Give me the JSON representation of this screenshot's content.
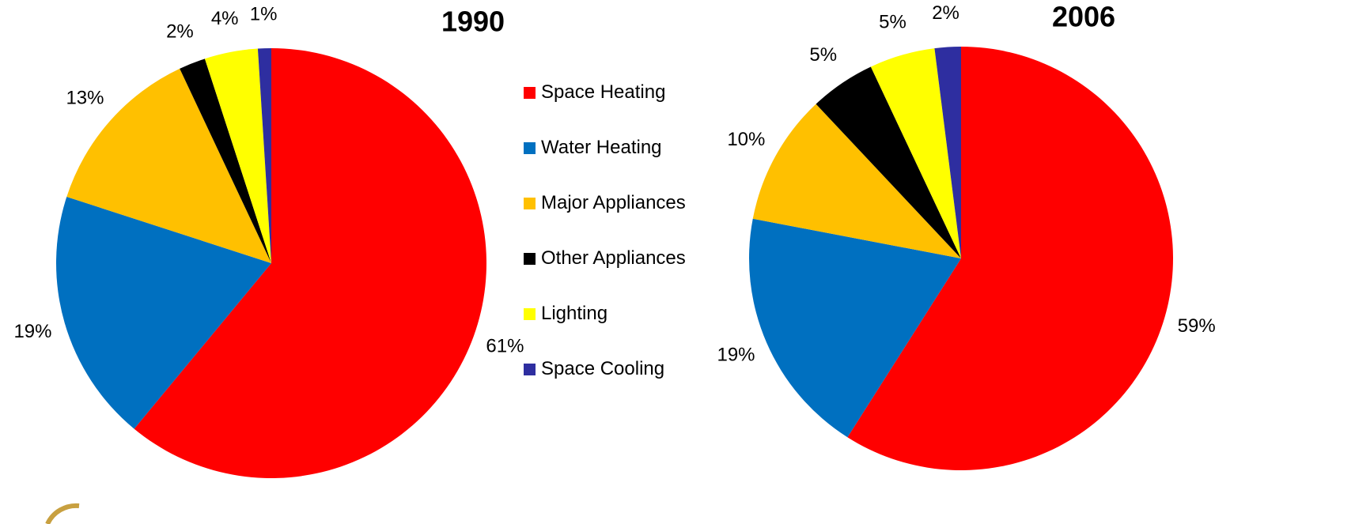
{
  "chart_data": [
    {
      "type": "pie",
      "title": "1990",
      "categories": [
        "Space Heating",
        "Water Heating",
        "Major Appliances",
        "Other Appliances",
        "Lighting",
        "Space Cooling"
      ],
      "colors": [
        "#ff0000",
        "#0070c0",
        "#ffc000",
        "#000000",
        "#ffff00",
        "#2e2ea0"
      ],
      "values": [
        61,
        19,
        13,
        2,
        4,
        1
      ],
      "value_labels": [
        "61%",
        "19%",
        "13%",
        "2%",
        "4%",
        "1%"
      ]
    },
    {
      "type": "pie",
      "title": "2006",
      "values": [
        59,
        19,
        10,
        5,
        5,
        2
      ],
      "value_labels": [
        "59%",
        "19%",
        "10%",
        "5%",
        "5%",
        "2%"
      ]
    }
  ]
}
